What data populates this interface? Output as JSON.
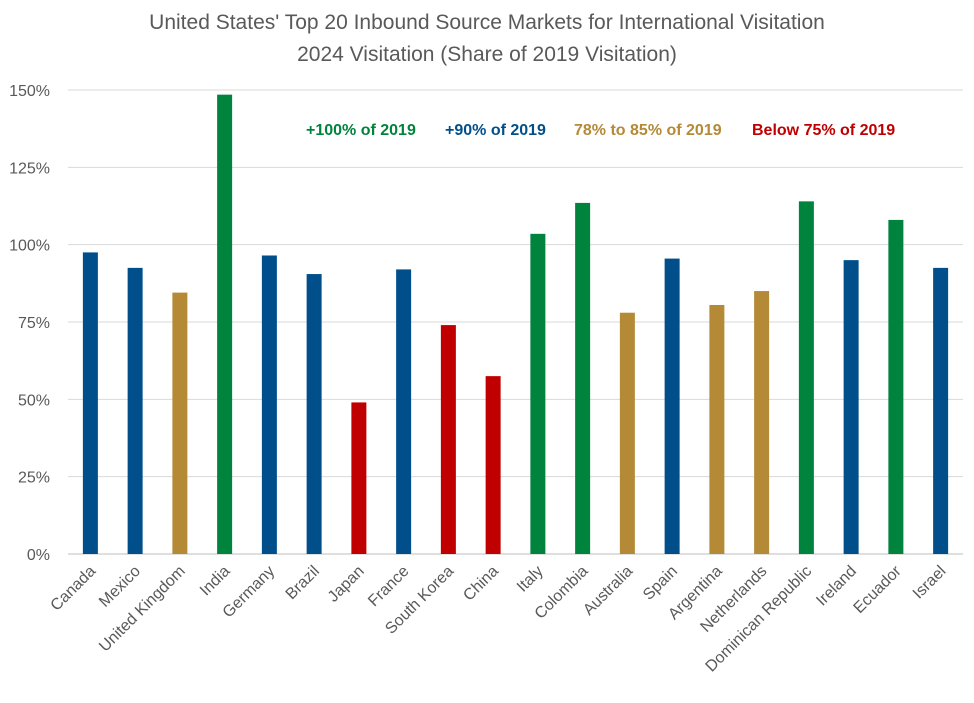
{
  "chart_data": {
    "type": "bar",
    "title": "United States' Top 20 Inbound Source Markets for International Visitation",
    "subtitle": "2024 Visitation (Share of 2019 Visitation)",
    "xlabel": "",
    "ylabel": "",
    "ylim": [
      0,
      150
    ],
    "yticks": [
      0,
      25,
      50,
      75,
      100,
      125,
      150
    ],
    "ytick_labels": [
      "0%",
      "25%",
      "50%",
      "75%",
      "100%",
      "125%",
      "150%"
    ],
    "grid": true,
    "categories": [
      "Canada",
      "Mexico",
      "United Kingdom",
      "India",
      "Germany",
      "Brazil",
      "Japan",
      "France",
      "South Korea",
      "China",
      "Italy",
      "Colombia",
      "Australia",
      "Spain",
      "Argentina",
      "Netherlands",
      "Dominican Republic",
      "Ireland",
      "Ecuador",
      "Israel"
    ],
    "values": [
      97.5,
      92.5,
      84.5,
      148.5,
      96.5,
      90.5,
      49,
      92,
      74,
      57.5,
      103.5,
      113.5,
      78,
      95.5,
      80.5,
      85,
      114,
      95,
      108,
      92.5
    ],
    "groups": [
      "blue",
      "blue",
      "gold",
      "green",
      "blue",
      "blue",
      "red",
      "blue",
      "red",
      "red",
      "green",
      "green",
      "gold",
      "blue",
      "gold",
      "gold",
      "green",
      "blue",
      "green",
      "blue"
    ],
    "legend_placement": "top",
    "legend": [
      {
        "key": "green",
        "label": "+100% of 2019",
        "color": "#00843d"
      },
      {
        "key": "blue",
        "label": "+90% of 2019",
        "color": "#004f8b"
      },
      {
        "key": "gold",
        "label": "78% to 85% of 2019",
        "color": "#b48a37"
      },
      {
        "key": "red",
        "label": "Below 75% of 2019",
        "color": "#c00000"
      }
    ]
  }
}
